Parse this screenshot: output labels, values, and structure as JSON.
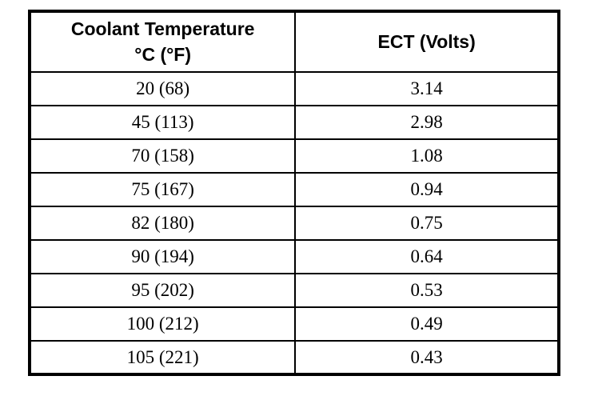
{
  "chart_data": {
    "type": "table",
    "title": "",
    "columns": [
      "Coolant Temperature °C (°F)",
      "ECT (Volts)"
    ],
    "header": {
      "col1_line1": "Coolant Temperature",
      "col1_line2": "°C (°F)",
      "col2": "ECT (Volts)"
    },
    "rows": [
      {
        "temp": "20 (68)",
        "volts": "3.14"
      },
      {
        "temp": "45 (113)",
        "volts": "2.98"
      },
      {
        "temp": "70 (158)",
        "volts": "1.08"
      },
      {
        "temp": "75 (167)",
        "volts": "0.94"
      },
      {
        "temp": "82 (180)",
        "volts": "0.75"
      },
      {
        "temp": "90 (194)",
        "volts": "0.64"
      },
      {
        "temp": "95 (202)",
        "volts": "0.53"
      },
      {
        "temp": "100 (212)",
        "volts": "0.49"
      },
      {
        "temp": "105 (221)",
        "volts": "0.43"
      }
    ],
    "colors": {
      "border": "#000000",
      "background": "#ffffff",
      "text": "#000000"
    }
  }
}
